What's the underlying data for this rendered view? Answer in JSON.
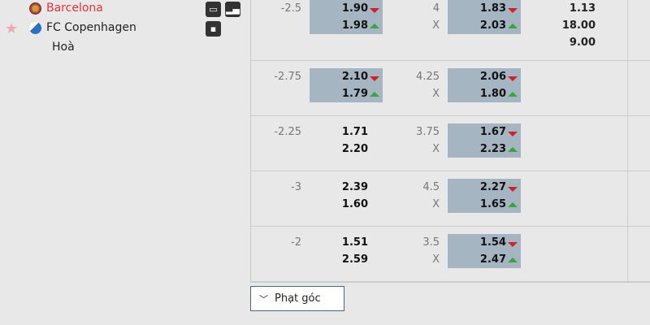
{
  "match": {
    "home": "Barcelona",
    "away": "FC Copenhagen",
    "draw": "Hoà",
    "home_color": "#e0323c"
  },
  "icons": [
    "monitor-icon",
    "signal-icon",
    "lineup-icon",
    "star-icon"
  ],
  "rows": [
    {
      "hcap": "-2.5",
      "h1": "1.90",
      "h1dir": "down",
      "h2": "1.98",
      "h2dir": "up",
      "hhl": true,
      "ou": "4",
      "ou2": "X",
      "o1": "1.83",
      "o1dir": "down",
      "o2": "2.03",
      "o2dir": "up",
      "ohl": true,
      "x12": [
        "1.13",
        "18.00",
        "9.00"
      ]
    },
    {
      "hcap": "-2.75",
      "h1": "2.10",
      "h1dir": "down",
      "h2": "1.79",
      "h2dir": "up",
      "hhl": true,
      "ou": "4.25",
      "ou2": "X",
      "o1": "2.06",
      "o1dir": "down",
      "o2": "1.80",
      "o2dir": "up",
      "ohl": true
    },
    {
      "hcap": "-2.25",
      "h1": "1.71",
      "h2": "2.20",
      "hhl": false,
      "ou": "3.75",
      "ou2": "X",
      "o1": "1.67",
      "o1dir": "down",
      "o2": "2.23",
      "o2dir": "up",
      "ohl": true
    },
    {
      "hcap": "-3",
      "h1": "2.39",
      "h2": "1.60",
      "hhl": false,
      "ou": "4.5",
      "ou2": "X",
      "o1": "2.27",
      "o1dir": "down",
      "o2": "1.65",
      "o2dir": "up",
      "ohl": true
    },
    {
      "hcap": "-2",
      "h1": "1.51",
      "h2": "2.59",
      "hhl": false,
      "ou": "3.5",
      "ou2": "X",
      "o1": "1.54",
      "o1dir": "down",
      "o2": "2.47",
      "o2dir": "up",
      "ohl": true
    }
  ],
  "corner_button": "Phạt góc"
}
